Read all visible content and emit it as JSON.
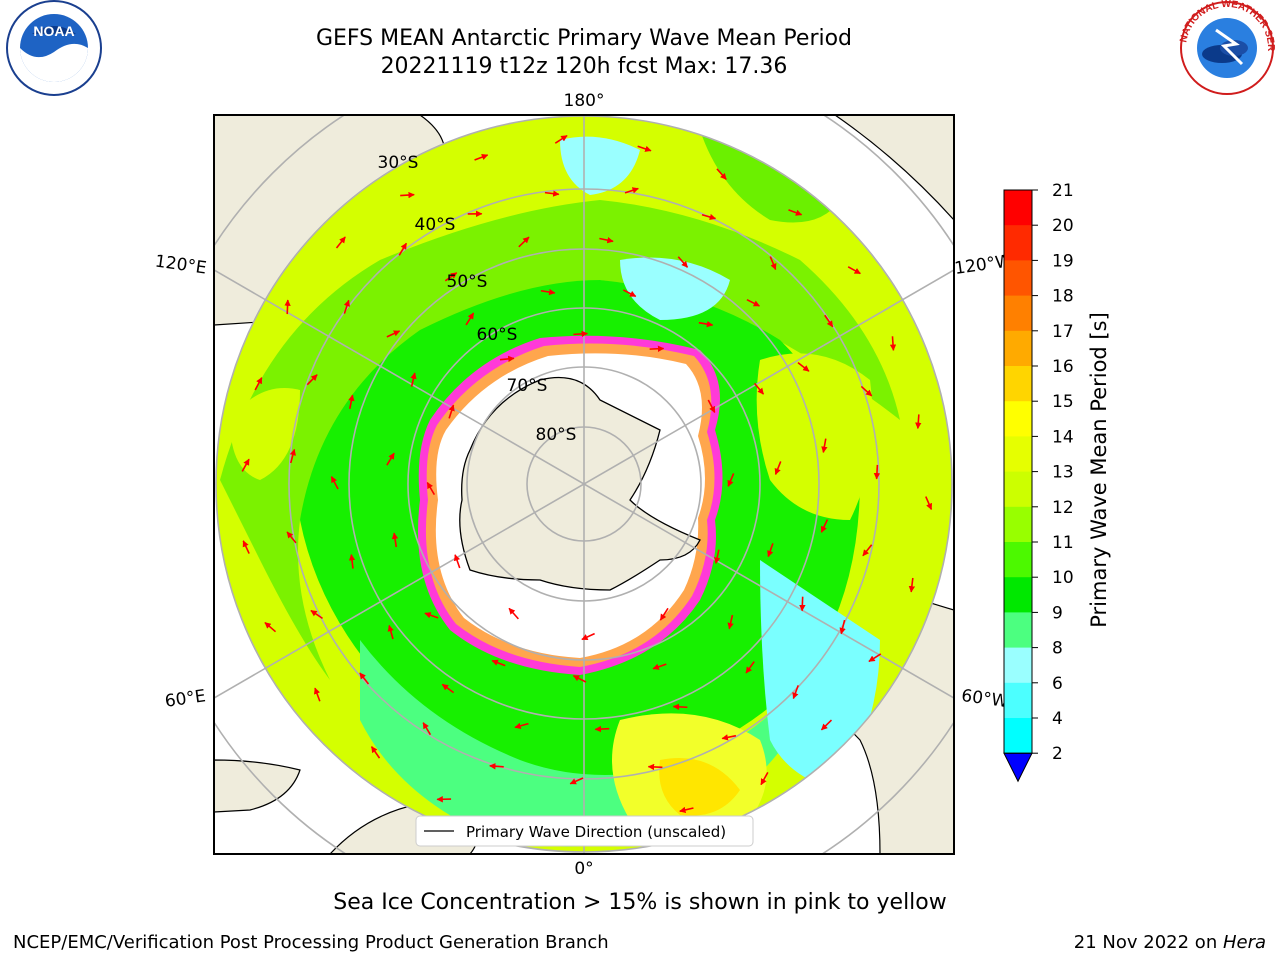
{
  "header": {
    "title_line1": "GEFS MEAN Antarctic Primary Wave Mean Period",
    "title_line2": "20221119 t12z 120h fcst   Max: 17.36"
  },
  "logos": {
    "left": {
      "name": "NOAA",
      "text": "NOAA"
    },
    "right": {
      "name": "National Weather Service",
      "text": "NATIONAL WEATHER SERVICE"
    }
  },
  "map": {
    "longitude_labels": {
      "top": "180°",
      "bottom": "0°",
      "upper_left": "120°E",
      "upper_right": "120°W",
      "lower_left": "60°E",
      "lower_right": "60°W"
    },
    "latitude_labels": [
      "30°S",
      "40°S",
      "50°S",
      "60°S",
      "70°S",
      "80°S"
    ],
    "legend": "Primary Wave Direction (unscaled)",
    "colors": {
      "land": "#efecdc",
      "ice": "#ffffff",
      "ocean_low": "#3cffff",
      "ocean_mid": "#17f000",
      "ocean_high": "#eeff00",
      "arrow": "#ff0000",
      "grid": "#b0b0b0"
    }
  },
  "colorbar": {
    "label": "Primary Wave Mean Period [s]",
    "ticks": [
      "21",
      "20",
      "19",
      "18",
      "17",
      "16",
      "15",
      "14",
      "13",
      "12",
      "11",
      "10",
      "9",
      "8",
      "6",
      "4",
      "2"
    ],
    "colors": [
      "#ff0000",
      "#ff2a00",
      "#ff5500",
      "#ff8000",
      "#ffaa00",
      "#ffd500",
      "#ffff00",
      "#e6ff00",
      "#ccff00",
      "#98ff00",
      "#4cf900",
      "#00e800",
      "#4cff80",
      "#9affff",
      "#4cffff",
      "#00ffff",
      "#00b2ff",
      "#0060ff"
    ]
  },
  "caption": "Sea Ice Concentration > 15% is shown in pink to yellow",
  "footer": {
    "left": "NCEP/EMC/Verification Post Processing Product Generation Branch",
    "right_prefix": "21 Nov 2022 on ",
    "right_italic": "Hera"
  }
}
